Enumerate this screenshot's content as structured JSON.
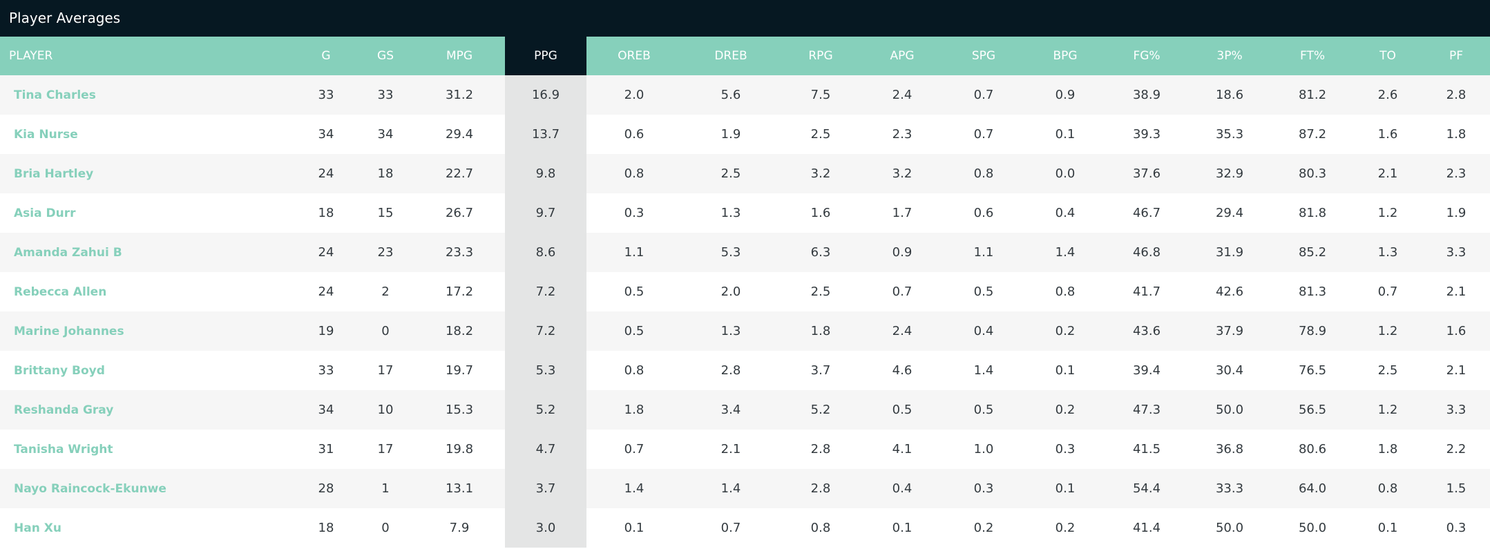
{
  "widget": {
    "title": "Player Averages"
  },
  "columns": [
    "PLAYER",
    "G",
    "GS",
    "MPG",
    "PPG",
    "OREB",
    "DREB",
    "RPG",
    "APG",
    "SPG",
    "BPG",
    "FG%",
    "3P%",
    "FT%",
    "TO",
    "PF"
  ],
  "sorted_column": "PPG",
  "colors": {
    "header_bg": "#86d0bb",
    "title_bg": "#061822",
    "player_link": "#86d0bb",
    "sorted_cell_bg": "#e4e5e5"
  },
  "rows": [
    [
      "Tina Charles",
      "33",
      "33",
      "31.2",
      "16.9",
      "2.0",
      "5.6",
      "7.5",
      "2.4",
      "0.7",
      "0.9",
      "38.9",
      "18.6",
      "81.2",
      "2.6",
      "2.8"
    ],
    [
      "Kia Nurse",
      "34",
      "34",
      "29.4",
      "13.7",
      "0.6",
      "1.9",
      "2.5",
      "2.3",
      "0.7",
      "0.1",
      "39.3",
      "35.3",
      "87.2",
      "1.6",
      "1.8"
    ],
    [
      "Bria Hartley",
      "24",
      "18",
      "22.7",
      "9.8",
      "0.8",
      "2.5",
      "3.2",
      "3.2",
      "0.8",
      "0.0",
      "37.6",
      "32.9",
      "80.3",
      "2.1",
      "2.3"
    ],
    [
      "Asia Durr",
      "18",
      "15",
      "26.7",
      "9.7",
      "0.3",
      "1.3",
      "1.6",
      "1.7",
      "0.6",
      "0.4",
      "46.7",
      "29.4",
      "81.8",
      "1.2",
      "1.9"
    ],
    [
      "Amanda Zahui B",
      "24",
      "23",
      "23.3",
      "8.6",
      "1.1",
      "5.3",
      "6.3",
      "0.9",
      "1.1",
      "1.4",
      "46.8",
      "31.9",
      "85.2",
      "1.3",
      "3.3"
    ],
    [
      "Rebecca Allen",
      "24",
      "2",
      "17.2",
      "7.2",
      "0.5",
      "2.0",
      "2.5",
      "0.7",
      "0.5",
      "0.8",
      "41.7",
      "42.6",
      "81.3",
      "0.7",
      "2.1"
    ],
    [
      "Marine Johannes",
      "19",
      "0",
      "18.2",
      "7.2",
      "0.5",
      "1.3",
      "1.8",
      "2.4",
      "0.4",
      "0.2",
      "43.6",
      "37.9",
      "78.9",
      "1.2",
      "1.6"
    ],
    [
      "Brittany Boyd",
      "33",
      "17",
      "19.7",
      "5.3",
      "0.8",
      "2.8",
      "3.7",
      "4.6",
      "1.4",
      "0.1",
      "39.4",
      "30.4",
      "76.5",
      "2.5",
      "2.1"
    ],
    [
      "Reshanda Gray",
      "34",
      "10",
      "15.3",
      "5.2",
      "1.8",
      "3.4",
      "5.2",
      "0.5",
      "0.5",
      "0.2",
      "47.3",
      "50.0",
      "56.5",
      "1.2",
      "3.3"
    ],
    [
      "Tanisha Wright",
      "31",
      "17",
      "19.8",
      "4.7",
      "0.7",
      "2.1",
      "2.8",
      "4.1",
      "1.0",
      "0.3",
      "41.5",
      "36.8",
      "80.6",
      "1.8",
      "2.2"
    ],
    [
      "Nayo Raincock-Ekunwe",
      "28",
      "1",
      "13.1",
      "3.7",
      "1.4",
      "1.4",
      "2.8",
      "0.4",
      "0.3",
      "0.1",
      "54.4",
      "33.3",
      "64.0",
      "0.8",
      "1.5"
    ],
    [
      "Han Xu",
      "18",
      "0",
      "7.9",
      "3.0",
      "0.1",
      "0.7",
      "0.8",
      "0.1",
      "0.2",
      "0.2",
      "41.4",
      "50.0",
      "50.0",
      "0.1",
      "0.3"
    ]
  ]
}
